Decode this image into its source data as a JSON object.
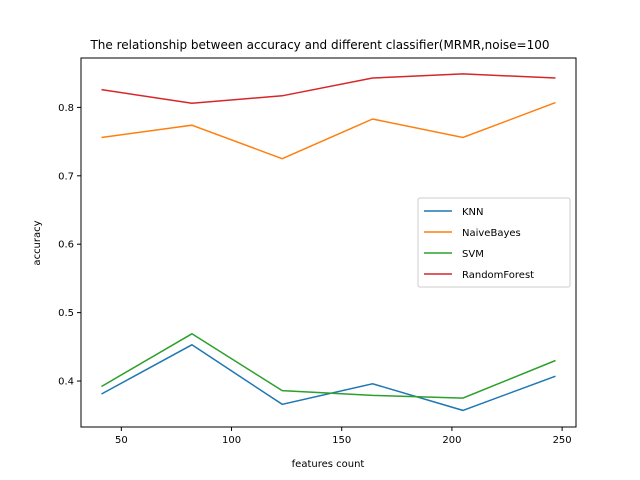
{
  "chart_data": {
    "type": "line",
    "title": "The relationship between accuracy and different classifier(MRMR,noise=100",
    "xlabel": "features count",
    "ylabel": "accuracy",
    "xlim": [
      31.7,
      256.3
    ],
    "ylim": [
      0.3328,
      0.8722
    ],
    "xticks": [
      50,
      100,
      150,
      200,
      250
    ],
    "yticks": [
      0.4,
      0.5,
      0.6,
      0.7,
      0.8
    ],
    "x": [
      41,
      82,
      123,
      164,
      205,
      247
    ],
    "series": [
      {
        "name": "KNN",
        "color": "#1f77b4",
        "values": [
          0.381,
          0.453,
          0.366,
          0.396,
          0.357,
          0.407
        ]
      },
      {
        "name": "NaiveBayes",
        "color": "#ff7f0e",
        "values": [
          0.756,
          0.774,
          0.725,
          0.783,
          0.756,
          0.807
        ]
      },
      {
        "name": "SVM",
        "color": "#2ca02c",
        "values": [
          0.392,
          0.469,
          0.386,
          0.379,
          0.375,
          0.43
        ]
      },
      {
        "name": "RandomForest",
        "color": "#d62728",
        "values": [
          0.826,
          0.806,
          0.817,
          0.843,
          0.849,
          0.843
        ]
      }
    ],
    "legend_position": "right",
    "grid": false
  }
}
